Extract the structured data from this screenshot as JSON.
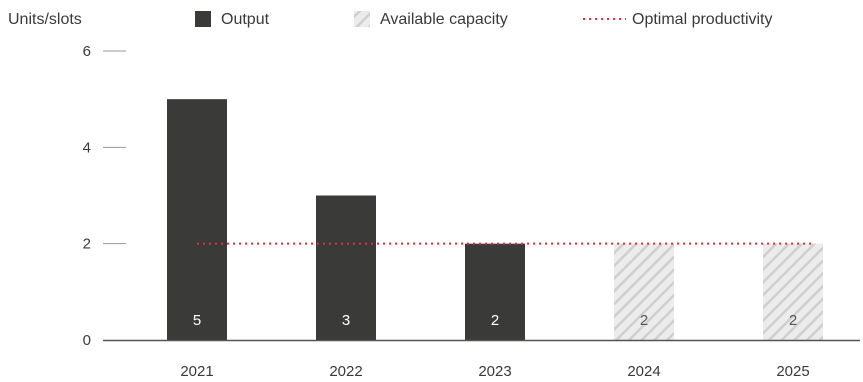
{
  "chart_data": {
    "type": "bar",
    "title": "",
    "xlabel": "",
    "ylabel": "Units/slots",
    "ylim": [
      0,
      6
    ],
    "yticks": [
      0,
      2,
      4,
      6
    ],
    "categories": [
      "2021",
      "2022",
      "2023",
      "2024",
      "2025"
    ],
    "series": [
      {
        "name": "Output",
        "values": [
          5,
          3,
          2,
          null,
          null
        ],
        "color": "#3a3a38",
        "pattern": "solid"
      },
      {
        "name": "Available capacity",
        "values": [
          null,
          null,
          null,
          2,
          2
        ],
        "color": "#d6d6d6",
        "pattern": "diagonal-hatch"
      }
    ],
    "data_labels": [
      "5",
      "3",
      "2",
      "2",
      "2"
    ],
    "reference_line": {
      "name": "Optimal productivity",
      "value": 2,
      "color": "#e0323c",
      "style": "dotted",
      "from_category": "2021",
      "to_category": "2025"
    },
    "legend": {
      "placement": "top",
      "items": [
        {
          "label": "Output",
          "swatch": "solid"
        },
        {
          "label": "Available capacity",
          "swatch": "hatch"
        },
        {
          "label": "Optimal productivity",
          "swatch": "dotted-line"
        }
      ]
    },
    "grid": false
  }
}
